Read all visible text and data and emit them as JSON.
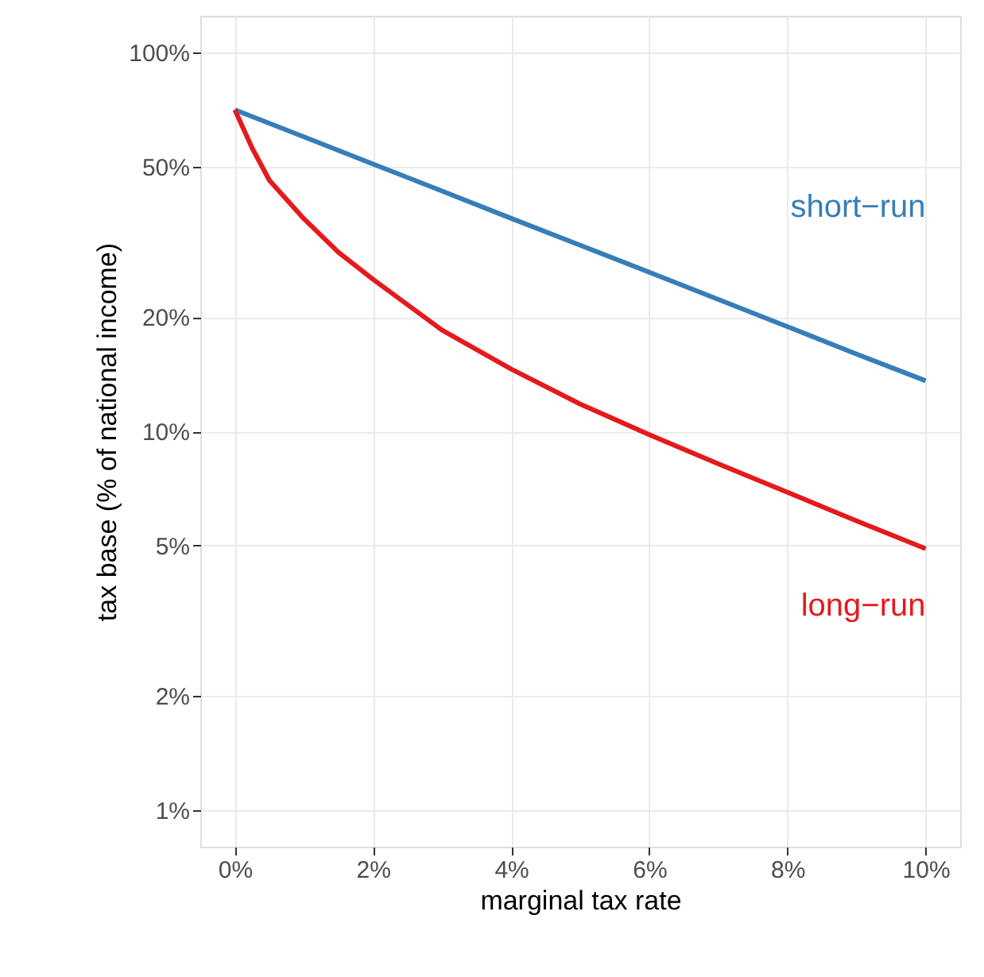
{
  "chart_data": {
    "type": "line",
    "xlabel": "marginal tax rate",
    "ylabel": "tax base (% of national income)",
    "log": "y",
    "grid": true,
    "line_style": "solid",
    "marker": "none",
    "xlim": [
      -0.5,
      10.5
    ],
    "ylim": [
      0.8,
      125
    ],
    "xticks": [
      {
        "value": 0,
        "label": "0%"
      },
      {
        "value": 2,
        "label": "2%"
      },
      {
        "value": 4,
        "label": "4%"
      },
      {
        "value": 6,
        "label": "6%"
      },
      {
        "value": 8,
        "label": "8%"
      },
      {
        "value": 10,
        "label": "10%"
      }
    ],
    "yticks": [
      {
        "value": 1,
        "label": "1%"
      },
      {
        "value": 2,
        "label": "2%"
      },
      {
        "value": 5,
        "label": "5%"
      },
      {
        "value": 10,
        "label": "10%"
      },
      {
        "value": 20,
        "label": "20%"
      },
      {
        "value": 50,
        "label": "50%"
      },
      {
        "value": 100,
        "label": "100%"
      }
    ],
    "series": [
      {
        "name": "short−run",
        "color": "#377eb8",
        "x": [
          0,
          1,
          2,
          3,
          4,
          5,
          6,
          7,
          8,
          9,
          10
        ],
        "values": [
          70.6,
          59.9,
          50.8,
          43.1,
          36.5,
          31.0,
          26.3,
          22.3,
          18.9,
          16.0,
          13.6
        ]
      },
      {
        "name": "long−run",
        "color": "#e41a1c",
        "x": [
          0,
          0.25,
          0.5,
          1,
          1.5,
          2,
          3,
          4,
          5,
          6,
          7,
          8,
          9,
          10
        ],
        "values": [
          70.6,
          56,
          46,
          36.4,
          29.7,
          25.2,
          18.5,
          14.6,
          11.8,
          9.8,
          8.2,
          6.9,
          5.8,
          4.9
        ]
      }
    ]
  }
}
